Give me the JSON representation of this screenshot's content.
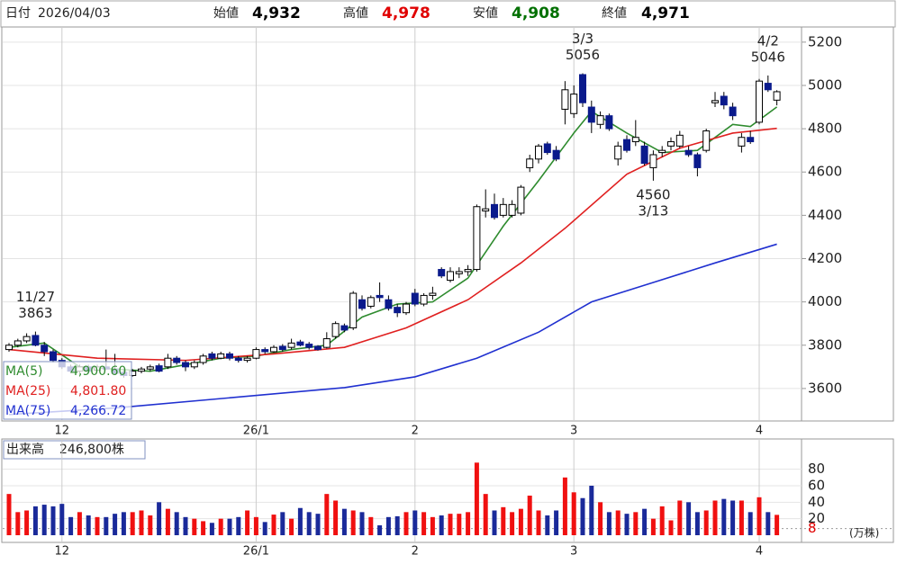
{
  "header": {
    "date_label": "日付",
    "date": "2026/04/03",
    "items": [
      {
        "label": "始値",
        "value": "4,932",
        "color": "#000000"
      },
      {
        "label": "高値",
        "value": "4,978",
        "color": "#e00000"
      },
      {
        "label": "安値",
        "value": "4,908",
        "color": "#007000"
      },
      {
        "label": "終値",
        "value": "4,971",
        "color": "#000000"
      }
    ]
  },
  "chart_data": [
    {
      "type": "candlestick",
      "up_color": "#ffffff",
      "down_color": "#0a1a8c",
      "ylim": [
        3450,
        5270
      ],
      "yticks": [
        3600,
        3800,
        4000,
        4200,
        4400,
        4600,
        4800,
        5000,
        5200
      ],
      "grid": true,
      "categories": [
        null,
        null,
        null,
        null,
        null,
        null,
        "12",
        null,
        null,
        null,
        null,
        null,
        null,
        null,
        null,
        null,
        null,
        null,
        null,
        null,
        null,
        null,
        null,
        null,
        null,
        null,
        null,
        null,
        "26/1",
        null,
        null,
        null,
        null,
        null,
        null,
        null,
        null,
        null,
        null,
        null,
        null,
        null,
        null,
        null,
        null,
        null,
        "2",
        null,
        null,
        null,
        null,
        null,
        null,
        null,
        null,
        null,
        null,
        null,
        null,
        null,
        null,
        null,
        null,
        null,
        "3",
        null,
        null,
        null,
        null,
        null,
        null,
        null,
        null,
        null,
        null,
        null,
        null,
        null,
        null,
        null,
        null,
        null,
        null,
        null,
        null,
        "4",
        null,
        null
      ],
      "ohlc": [
        [
          3780,
          3810,
          3770,
          3800
        ],
        [
          3800,
          3830,
          3790,
          3820
        ],
        [
          3820,
          3855,
          3810,
          3840
        ],
        [
          3845,
          3863,
          3795,
          3800
        ],
        [
          3800,
          3815,
          3750,
          3770
        ],
        [
          3770,
          3780,
          3720,
          3730
        ],
        [
          3730,
          3740,
          3690,
          3700
        ],
        [
          3700,
          3710,
          3670,
          3680
        ],
        [
          3680,
          3710,
          3670,
          3700
        ],
        [
          3700,
          3710,
          3675,
          3680
        ],
        [
          3685,
          3710,
          3680,
          3700
        ],
        [
          3700,
          3780,
          3685,
          3690
        ],
        [
          3690,
          3760,
          3665,
          3670
        ],
        [
          3675,
          3690,
          3650,
          3660
        ],
        [
          3660,
          3690,
          3655,
          3680
        ],
        [
          3680,
          3700,
          3670,
          3690
        ],
        [
          3690,
          3710,
          3680,
          3700
        ],
        [
          3705,
          3715,
          3675,
          3680
        ],
        [
          3700,
          3760,
          3690,
          3740
        ],
        [
          3740,
          3750,
          3710,
          3720
        ],
        [
          3720,
          3730,
          3680,
          3700
        ],
        [
          3700,
          3730,
          3690,
          3720
        ],
        [
          3720,
          3760,
          3710,
          3750
        ],
        [
          3760,
          3770,
          3730,
          3740
        ],
        [
          3740,
          3770,
          3735,
          3760
        ],
        [
          3760,
          3770,
          3730,
          3740
        ],
        [
          3740,
          3750,
          3720,
          3730
        ],
        [
          3730,
          3750,
          3720,
          3740
        ],
        [
          3740,
          3790,
          3735,
          3780
        ],
        [
          3780,
          3790,
          3760,
          3770
        ],
        [
          3770,
          3800,
          3765,
          3790
        ],
        [
          3795,
          3805,
          3770,
          3780
        ],
        [
          3790,
          3830,
          3780,
          3810
        ],
        [
          3815,
          3825,
          3795,
          3800
        ],
        [
          3805,
          3815,
          3780,
          3790
        ],
        [
          3795,
          3800,
          3775,
          3780
        ],
        [
          3790,
          3860,
          3785,
          3830
        ],
        [
          3840,
          3910,
          3830,
          3900
        ],
        [
          3890,
          3900,
          3860,
          3870
        ],
        [
          3880,
          4050,
          3870,
          4040
        ],
        [
          4010,
          4030,
          3960,
          3970
        ],
        [
          3980,
          4030,
          3970,
          4020
        ],
        [
          4030,
          4090,
          4000,
          4020
        ],
        [
          4010,
          4030,
          3960,
          3970
        ],
        [
          3975,
          3990,
          3930,
          3950
        ],
        [
          3950,
          4000,
          3940,
          3990
        ],
        [
          4040,
          4060,
          3980,
          3990
        ],
        [
          3990,
          4040,
          3980,
          4030
        ],
        [
          4030,
          4070,
          4010,
          4040
        ],
        [
          4150,
          4160,
          4110,
          4120
        ],
        [
          4100,
          4160,
          4090,
          4140
        ],
        [
          4130,
          4160,
          4110,
          4140
        ],
        [
          4140,
          4170,
          4120,
          4150
        ],
        [
          4150,
          4450,
          4140,
          4440
        ],
        [
          4420,
          4520,
          4390,
          4430
        ],
        [
          4450,
          4500,
          4380,
          4390
        ],
        [
          4400,
          4480,
          4390,
          4450
        ],
        [
          4400,
          4470,
          4390,
          4450
        ],
        [
          4410,
          4540,
          4400,
          4530
        ],
        [
          4620,
          4680,
          4600,
          4660
        ],
        [
          4660,
          4730,
          4640,
          4720
        ],
        [
          4730,
          4740,
          4680,
          4690
        ],
        [
          4700,
          4720,
          4650,
          4660
        ],
        [
          4890,
          5020,
          4820,
          4980
        ],
        [
          4870,
          5000,
          4850,
          4960
        ],
        [
          5050,
          5056,
          4900,
          4920
        ],
        [
          4900,
          4930,
          4780,
          4830
        ],
        [
          4820,
          4880,
          4800,
          4860
        ],
        [
          4860,
          4870,
          4790,
          4800
        ],
        [
          4660,
          4740,
          4630,
          4720
        ],
        [
          4750,
          4770,
          4690,
          4700
        ],
        [
          4740,
          4840,
          4720,
          4760
        ],
        [
          4720,
          4740,
          4630,
          4640
        ],
        [
          4620,
          4700,
          4560,
          4680
        ],
        [
          4690,
          4720,
          4670,
          4700
        ],
        [
          4720,
          4760,
          4700,
          4740
        ],
        [
          4720,
          4790,
          4710,
          4770
        ],
        [
          4700,
          4720,
          4670,
          4680
        ],
        [
          4680,
          4690,
          4580,
          4620
        ],
        [
          4700,
          4800,
          4690,
          4790
        ],
        [
          4920,
          4970,
          4900,
          4930
        ],
        [
          4950,
          4970,
          4890,
          4910
        ],
        [
          4900,
          4920,
          4840,
          4860
        ],
        [
          4720,
          4780,
          4690,
          4760
        ],
        [
          4760,
          4790,
          4730,
          4740
        ],
        [
          4830,
          5030,
          4820,
          5020
        ],
        [
          5010,
          5046,
          4970,
          4980
        ],
        [
          4932,
          4978,
          4908,
          4971
        ]
      ],
      "series": [
        {
          "name": "MA(5)",
          "color": "#2e8b2e",
          "value_label": "4,900.60",
          "x": [
            0,
            4,
            8,
            12,
            16,
            20,
            24,
            28,
            32,
            36,
            40,
            44,
            48,
            52,
            56,
            60,
            64,
            66,
            70,
            74,
            78,
            82,
            84,
            87
          ],
          "values": [
            3790,
            3810,
            3700,
            3690,
            3680,
            3710,
            3740,
            3750,
            3780,
            3800,
            3930,
            3990,
            4000,
            4110,
            4350,
            4560,
            4780,
            4880,
            4780,
            4690,
            4700,
            4820,
            4810,
            4900.6
          ]
        },
        {
          "name": "MA(25)",
          "color": "#e02020",
          "value_label": "4,801.80",
          "x": [
            0,
            10,
            20,
            30,
            38,
            45,
            52,
            58,
            63,
            70,
            76,
            82,
            87
          ],
          "values": [
            3780,
            3740,
            3730,
            3760,
            3790,
            3880,
            4010,
            4180,
            4340,
            4590,
            4710,
            4780,
            4801.8
          ]
        },
        {
          "name": "MA(75)",
          "color": "#2030d0",
          "value_label": "4,266.72",
          "x": [
            0,
            12,
            38,
            46,
            53,
            60,
            66,
            73,
            80,
            87
          ],
          "values": [
            3480,
            3510,
            3604,
            3654,
            3740,
            3860,
            4000,
            4090,
            4180,
            4266.72
          ]
        }
      ],
      "annotations": [
        {
          "date": "11/27",
          "price": 3863,
          "at": "high"
        },
        {
          "date": "3/3",
          "price": 5056,
          "at": "high"
        },
        {
          "date": "3/13",
          "price": 4560,
          "at": "low"
        },
        {
          "date": "4/2",
          "price": 5046,
          "at": "high"
        }
      ]
    },
    {
      "type": "bar",
      "title": "出来高",
      "latest_label": "246,800株",
      "unit": "(万株)",
      "up_color": "#f01010",
      "down_color": "#1a2a9a",
      "ylim": [
        0,
        114.5
      ],
      "yticks": [
        20,
        40,
        60,
        80
      ],
      "marker": 8,
      "marker_color": "#e00000",
      "values": [
        50,
        28,
        30,
        35,
        37,
        35,
        38,
        22,
        28,
        24,
        22,
        22,
        26,
        28,
        28,
        30,
        24,
        40,
        32,
        28,
        22,
        20,
        17,
        15,
        20,
        20,
        22,
        30,
        22,
        16,
        25,
        28,
        20,
        33,
        28,
        26,
        50,
        42,
        32,
        30,
        28,
        22,
        12,
        22,
        23,
        28,
        30,
        28,
        22,
        24,
        26,
        26,
        28,
        88,
        50,
        30,
        34,
        28,
        32,
        48,
        30,
        24,
        30,
        70,
        52,
        45,
        60,
        40,
        28,
        30,
        26,
        28,
        32,
        20,
        35,
        18,
        42,
        40,
        28,
        30,
        42,
        44,
        42,
        42,
        28,
        46,
        28,
        24.68
      ]
    }
  ]
}
